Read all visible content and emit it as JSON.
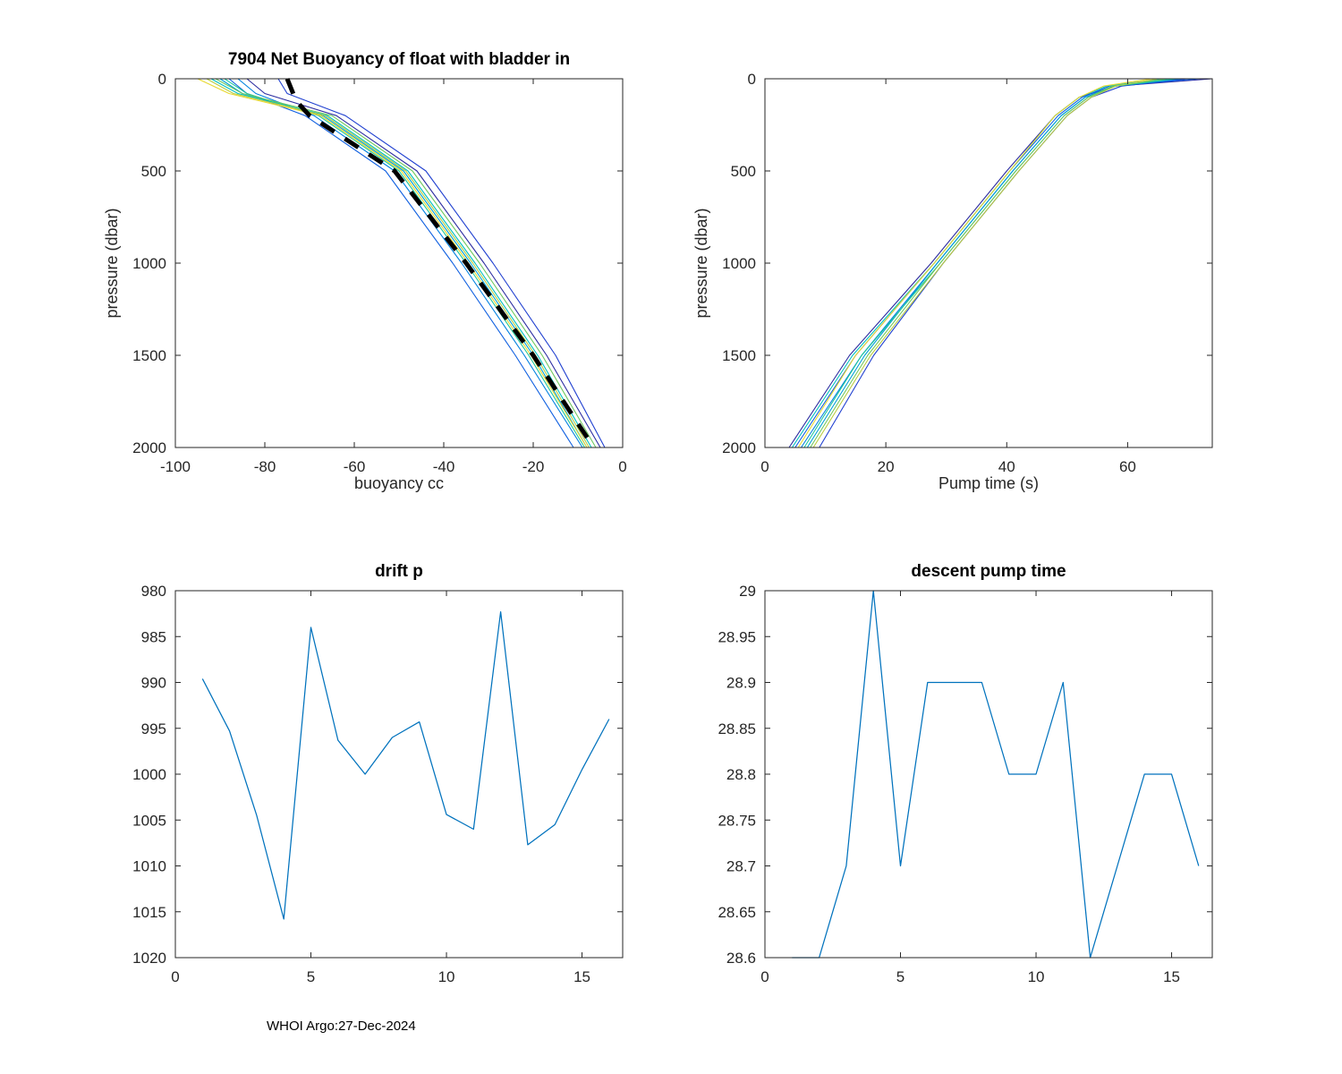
{
  "footer": {
    "credit": "WHOI Argo:27-Dec-2024"
  },
  "chart_data": [
    {
      "id": "net-buoyancy-profiles",
      "type": "line",
      "title": "7904 Net Buoyancy of float with bladder in",
      "xlabel": "buoyancy cc",
      "ylabel": "pressure (dbar)",
      "xlim": [
        -100,
        0
      ],
      "ylim": [
        0,
        2000
      ],
      "y_reversed": true,
      "xticks": [
        -100,
        -80,
        -60,
        -40,
        -20,
        0
      ],
      "yticks": [
        0,
        500,
        1000,
        1500,
        2000
      ],
      "grid": false,
      "legend": false,
      "series": [
        {
          "color": "#2c2ca0",
          "width": 1.1,
          "points": [
            [
              -84,
              0
            ],
            [
              -80,
              80
            ],
            [
              -64,
              200
            ],
            [
              -46,
              500
            ],
            [
              -31,
              1000
            ],
            [
              -17,
              1500
            ],
            [
              -5,
              2000
            ]
          ]
        },
        {
          "color": "#2040d0",
          "width": 1.1,
          "points": [
            [
              -77,
              0
            ],
            [
              -75,
              80
            ],
            [
              -62,
              200
            ],
            [
              -44,
              500
            ],
            [
              -29,
              1000
            ],
            [
              -15,
              1500
            ],
            [
              -4,
              2000
            ]
          ]
        },
        {
          "color": "#1060e0",
          "width": 1.1,
          "points": [
            [
              -88,
              0
            ],
            [
              -84,
              80
            ],
            [
              -71,
              200
            ],
            [
              -53,
              500
            ],
            [
              -38,
              1000
            ],
            [
              -24,
              1500
            ],
            [
              -11,
              2000
            ]
          ]
        },
        {
          "color": "#0080e0",
          "width": 1.1,
          "points": [
            [
              -86,
              0
            ],
            [
              -82,
              80
            ],
            [
              -69,
              200
            ],
            [
              -51,
              500
            ],
            [
              -36,
              1000
            ],
            [
              -22,
              1500
            ],
            [
              -9,
              2000
            ]
          ]
        },
        {
          "color": "#00a0d8",
          "width": 1.1,
          "points": [
            [
              -90,
              0
            ],
            [
              -85,
              80
            ],
            [
              -67,
              200
            ],
            [
              -49,
              500
            ],
            [
              -34,
              1000
            ],
            [
              -20,
              1500
            ],
            [
              -8,
              2000
            ]
          ]
        },
        {
          "color": "#00c0c0",
          "width": 1.1,
          "points": [
            [
              -92,
              0
            ],
            [
              -86,
              80
            ],
            [
              -66,
              200
            ],
            [
              -48,
              500
            ],
            [
              -33,
              1000
            ],
            [
              -19,
              1500
            ],
            [
              -7,
              2000
            ]
          ]
        },
        {
          "color": "#20c898",
          "width": 1.1,
          "points": [
            [
              -89,
              0
            ],
            [
              -84,
              80
            ],
            [
              -68,
              200
            ],
            [
              -50,
              500
            ],
            [
              -35,
              1000
            ],
            [
              -21,
              1500
            ],
            [
              -8.5,
              2000
            ]
          ]
        },
        {
          "color": "#70c860",
          "width": 1.1,
          "points": [
            [
              -91,
              0
            ],
            [
              -85,
              80
            ],
            [
              -65,
              200
            ],
            [
              -47,
              500
            ],
            [
              -32,
              1000
            ],
            [
              -18,
              1500
            ],
            [
              -6,
              2000
            ]
          ]
        },
        {
          "color": "#b8cc40",
          "width": 1.1,
          "points": [
            [
              -93,
              0
            ],
            [
              -87,
              80
            ],
            [
              -66.5,
              200
            ],
            [
              -48.5,
              500
            ],
            [
              -33.5,
              1000
            ],
            [
              -19.5,
              1500
            ],
            [
              -7.5,
              2000
            ]
          ]
        },
        {
          "color": "#e8d830",
          "width": 1.1,
          "points": [
            [
              -95,
              0
            ],
            [
              -88,
              80
            ],
            [
              -67.5,
              200
            ],
            [
              -49.5,
              500
            ],
            [
              -34.5,
              1000
            ],
            [
              -20.5,
              1500
            ],
            [
              -8,
              2000
            ]
          ]
        },
        {
          "color": "#000000",
          "width": 5,
          "dash": "18 14",
          "points": [
            [
              -75,
              0
            ],
            [
              -73,
              120
            ],
            [
              -70,
              200
            ],
            [
              -51,
              500
            ],
            [
              -35,
              1000
            ],
            [
              -20,
              1500
            ],
            [
              -6.5,
              2000
            ]
          ]
        }
      ]
    },
    {
      "id": "pump-time-profiles",
      "type": "line",
      "title": "",
      "xlabel": "Pump time (s)",
      "ylabel": "pressure (dbar)",
      "xlim": [
        0,
        74
      ],
      "ylim": [
        0,
        2000
      ],
      "y_reversed": true,
      "xticks": [
        0,
        20,
        40,
        60
      ],
      "yticks": [
        0,
        500,
        1000,
        1500,
        2000
      ],
      "grid": false,
      "legend": false,
      "series": [
        {
          "color": "#2c2ca0",
          "width": 1.1,
          "points": [
            [
              4,
              2000
            ],
            [
              14,
              1500
            ],
            [
              27.5,
              1000
            ],
            [
              40,
              500
            ],
            [
              48,
              200
            ],
            [
              52,
              100
            ],
            [
              58,
              40
            ],
            [
              74,
              0
            ]
          ]
        },
        {
          "color": "#2040d0",
          "width": 1.1,
          "points": [
            [
              9,
              2000
            ],
            [
              18,
              1500
            ],
            [
              29.5,
              1000
            ],
            [
              42,
              500
            ],
            [
              50,
              200
            ],
            [
              54,
              100
            ],
            [
              59,
              40
            ],
            [
              70,
              0
            ]
          ]
        },
        {
          "color": "#1060e0",
          "width": 1.1,
          "points": [
            [
              5,
              2000
            ],
            [
              15,
              1500
            ],
            [
              28,
              1000
            ],
            [
              40.5,
              500
            ],
            [
              48.5,
              200
            ],
            [
              52.5,
              100
            ],
            [
              57,
              40
            ],
            [
              72,
              0
            ]
          ]
        },
        {
          "color": "#0080e0",
          "width": 1.1,
          "points": [
            [
              6,
              2000
            ],
            [
              16,
              1500
            ],
            [
              28.5,
              1000
            ],
            [
              41,
              500
            ],
            [
              49,
              200
            ],
            [
              53,
              100
            ],
            [
              58,
              40
            ],
            [
              69,
              0
            ]
          ]
        },
        {
          "color": "#00a0d8",
          "width": 1.1,
          "points": [
            [
              7,
              2000
            ],
            [
              16.5,
              1500
            ],
            [
              28.5,
              1000
            ],
            [
              41,
              500
            ],
            [
              49,
              200
            ],
            [
              53,
              100
            ],
            [
              57.5,
              40
            ],
            [
              67,
              0
            ]
          ]
        },
        {
          "color": "#00c0c0",
          "width": 1.1,
          "points": [
            [
              4.5,
              2000
            ],
            [
              14.5,
              1500
            ],
            [
              28,
              1000
            ],
            [
              40.5,
              500
            ],
            [
              48,
              200
            ],
            [
              52,
              100
            ],
            [
              56.5,
              40
            ],
            [
              66,
              0
            ]
          ]
        },
        {
          "color": "#20c898",
          "width": 1.1,
          "points": [
            [
              6.5,
              2000
            ],
            [
              16,
              1500
            ],
            [
              29,
              1000
            ],
            [
              41.5,
              500
            ],
            [
              49.5,
              200
            ],
            [
              53.5,
              100
            ],
            [
              58,
              40
            ],
            [
              68,
              0
            ]
          ]
        },
        {
          "color": "#70c860",
          "width": 1.1,
          "points": [
            [
              7.5,
              2000
            ],
            [
              17,
              1500
            ],
            [
              29,
              1000
            ],
            [
              41.5,
              500
            ],
            [
              49.5,
              200
            ],
            [
              53.5,
              100
            ],
            [
              57.5,
              40
            ],
            [
              66.5,
              0
            ]
          ]
        },
        {
          "color": "#b8cc40",
          "width": 1.1,
          "points": [
            [
              8,
              2000
            ],
            [
              17.5,
              1500
            ],
            [
              29.5,
              1000
            ],
            [
              42,
              500
            ],
            [
              50,
              200
            ],
            [
              54,
              100
            ],
            [
              58,
              40
            ],
            [
              65,
              0
            ]
          ]
        },
        {
          "color": "#e8d830",
          "width": 1.1,
          "points": [
            [
              5.5,
              2000
            ],
            [
              15,
              1500
            ],
            [
              28,
              1000
            ],
            [
              40.5,
              500
            ],
            [
              48,
              200
            ],
            [
              52,
              100
            ],
            [
              56,
              40
            ],
            [
              64,
              0
            ]
          ]
        }
      ]
    },
    {
      "id": "drift-p",
      "type": "line",
      "title": "drift p",
      "xlabel": "",
      "ylabel": "",
      "xlim": [
        0,
        16.5
      ],
      "ylim": [
        980,
        1020
      ],
      "y_reversed": true,
      "xticks": [
        0,
        5,
        10,
        15
      ],
      "yticks": [
        980,
        985,
        990,
        995,
        1000,
        1005,
        1010,
        1015,
        1020
      ],
      "grid": false,
      "legend": false,
      "series": [
        {
          "color": "#0072bd",
          "width": 1.25,
          "points": [
            [
              1,
              989.6
            ],
            [
              2,
              995.3
            ],
            [
              3,
              1004.5
            ],
            [
              4,
              1015.8
            ],
            [
              5,
              984
            ],
            [
              6,
              996.3
            ],
            [
              7,
              1000
            ],
            [
              8,
              996
            ],
            [
              9,
              994.3
            ],
            [
              10,
              1004.4
            ],
            [
              11,
              1006
            ],
            [
              12,
              982.3
            ],
            [
              13,
              1007.7
            ],
            [
              14,
              1005.5
            ],
            [
              15,
              999.5
            ],
            [
              16,
              994
            ]
          ]
        }
      ]
    },
    {
      "id": "descent-pump-time",
      "type": "line",
      "title": "descent pump time",
      "xlabel": "",
      "ylabel": "",
      "xlim": [
        0,
        16.5
      ],
      "ylim": [
        28.6,
        29
      ],
      "y_reversed": false,
      "xticks": [
        0,
        5,
        10,
        15
      ],
      "yticks": [
        28.6,
        28.65,
        28.7,
        28.75,
        28.8,
        28.85,
        28.9,
        28.95,
        29
      ],
      "grid": false,
      "legend": false,
      "series": [
        {
          "color": "#0072bd",
          "width": 1.25,
          "points": [
            [
              1,
              28.6
            ],
            [
              2,
              28.6
            ],
            [
              3,
              28.7
            ],
            [
              4,
              29
            ],
            [
              5,
              28.7
            ],
            [
              6,
              28.9
            ],
            [
              7,
              28.9
            ],
            [
              8,
              28.9
            ],
            [
              9,
              28.8
            ],
            [
              10,
              28.8
            ],
            [
              11,
              28.9
            ],
            [
              12,
              28.6
            ],
            [
              13,
              28.7
            ],
            [
              14,
              28.8
            ],
            [
              15,
              28.8
            ],
            [
              16,
              28.7
            ]
          ]
        }
      ]
    }
  ]
}
